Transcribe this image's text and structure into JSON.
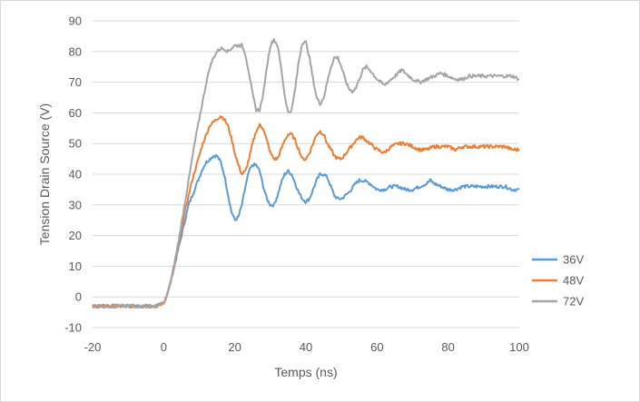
{
  "chart_data": {
    "type": "line",
    "title": "",
    "xlabel": "Temps (ns)",
    "ylabel": "Tension Drain Source (V)",
    "xlim": [
      -20,
      100
    ],
    "ylim": [
      -10,
      90
    ],
    "xticks": [
      -20,
      0,
      20,
      40,
      60,
      80,
      100
    ],
    "yticks": [
      -10,
      0,
      10,
      20,
      30,
      40,
      50,
      60,
      70,
      80,
      90
    ],
    "xtick_labels": [
      "-20",
      "0",
      "20",
      "40",
      "60",
      "80",
      "100"
    ],
    "ytick_labels": [
      "-10",
      "0",
      "10",
      "20",
      "30",
      "40",
      "50",
      "60",
      "70",
      "80",
      "90"
    ],
    "grid": "horizontal",
    "legend_position": "right",
    "series": [
      {
        "name": "36V",
        "color": "#5B9BD5",
        "points": [
          [
            -20,
            -3
          ],
          [
            -10,
            -3
          ],
          [
            -2,
            -3
          ],
          [
            0,
            -2
          ],
          [
            1,
            1
          ],
          [
            2,
            5
          ],
          [
            3,
            10
          ],
          [
            4,
            15
          ],
          [
            5,
            20
          ],
          [
            6,
            25
          ],
          [
            7,
            30
          ],
          [
            8,
            33
          ],
          [
            9,
            36
          ],
          [
            10,
            39
          ],
          [
            11,
            42
          ],
          [
            12,
            44
          ],
          [
            13,
            45
          ],
          [
            14,
            46
          ],
          [
            15,
            46
          ],
          [
            16,
            44
          ],
          [
            17,
            40
          ],
          [
            18,
            34
          ],
          [
            19,
            28
          ],
          [
            20,
            25
          ],
          [
            21,
            26
          ],
          [
            22,
            30
          ],
          [
            23,
            36
          ],
          [
            24,
            41
          ],
          [
            25,
            43
          ],
          [
            26,
            43
          ],
          [
            27,
            41
          ],
          [
            28,
            36
          ],
          [
            29,
            32
          ],
          [
            30,
            30
          ],
          [
            31,
            30
          ],
          [
            32,
            33
          ],
          [
            33,
            37
          ],
          [
            34,
            40
          ],
          [
            35,
            41
          ],
          [
            36,
            40
          ],
          [
            37,
            37
          ],
          [
            38,
            34
          ],
          [
            39,
            32
          ],
          [
            40,
            31
          ],
          [
            41,
            32
          ],
          [
            42,
            35
          ],
          [
            43,
            38
          ],
          [
            44,
            40
          ],
          [
            45,
            40
          ],
          [
            46,
            39
          ],
          [
            47,
            36
          ],
          [
            48,
            33
          ],
          [
            49,
            32
          ],
          [
            50,
            32
          ],
          [
            52,
            34
          ],
          [
            54,
            37
          ],
          [
            55,
            38
          ],
          [
            56,
            38
          ],
          [
            58,
            37
          ],
          [
            60,
            35
          ],
          [
            62,
            35
          ],
          [
            64,
            36
          ],
          [
            66,
            36
          ],
          [
            68,
            35
          ],
          [
            70,
            35
          ],
          [
            72,
            36
          ],
          [
            74,
            37
          ],
          [
            75,
            38
          ],
          [
            76,
            37
          ],
          [
            78,
            36
          ],
          [
            80,
            35
          ],
          [
            82,
            35
          ],
          [
            84,
            36
          ],
          [
            86,
            36
          ],
          [
            88,
            36
          ],
          [
            90,
            36
          ],
          [
            92,
            36
          ],
          [
            94,
            36
          ],
          [
            96,
            36
          ],
          [
            98,
            35
          ],
          [
            100,
            35
          ]
        ]
      },
      {
        "name": "48V",
        "color": "#ED7D31",
        "points": [
          [
            -20,
            -3
          ],
          [
            -10,
            -3
          ],
          [
            -2,
            -3
          ],
          [
            0,
            -2
          ],
          [
            1,
            1
          ],
          [
            2,
            5
          ],
          [
            3,
            10
          ],
          [
            4,
            16
          ],
          [
            5,
            22
          ],
          [
            6,
            28
          ],
          [
            7,
            33
          ],
          [
            8,
            38
          ],
          [
            9,
            42
          ],
          [
            10,
            46
          ],
          [
            11,
            50
          ],
          [
            12,
            53
          ],
          [
            13,
            56
          ],
          [
            14,
            57
          ],
          [
            15,
            58
          ],
          [
            16,
            59
          ],
          [
            17,
            58
          ],
          [
            18,
            56
          ],
          [
            19,
            52
          ],
          [
            20,
            47
          ],
          [
            21,
            43
          ],
          [
            22,
            40
          ],
          [
            23,
            41
          ],
          [
            24,
            45
          ],
          [
            25,
            50
          ],
          [
            26,
            54
          ],
          [
            27,
            56
          ],
          [
            28,
            55
          ],
          [
            29,
            51
          ],
          [
            30,
            47
          ],
          [
            31,
            45
          ],
          [
            32,
            45
          ],
          [
            33,
            48
          ],
          [
            34,
            51
          ],
          [
            35,
            53
          ],
          [
            36,
            53
          ],
          [
            37,
            51
          ],
          [
            38,
            48
          ],
          [
            39,
            45
          ],
          [
            40,
            45
          ],
          [
            41,
            47
          ],
          [
            42,
            50
          ],
          [
            43,
            53
          ],
          [
            44,
            54
          ],
          [
            45,
            53
          ],
          [
            46,
            50
          ],
          [
            47,
            48
          ],
          [
            48,
            46
          ],
          [
            49,
            45
          ],
          [
            50,
            45
          ],
          [
            52,
            48
          ],
          [
            54,
            51
          ],
          [
            55,
            52
          ],
          [
            56,
            52
          ],
          [
            58,
            50
          ],
          [
            60,
            48
          ],
          [
            62,
            47
          ],
          [
            64,
            49
          ],
          [
            66,
            50
          ],
          [
            68,
            50
          ],
          [
            70,
            49
          ],
          [
            72,
            48
          ],
          [
            74,
            48
          ],
          [
            76,
            49
          ],
          [
            78,
            49
          ],
          [
            80,
            49
          ],
          [
            82,
            48
          ],
          [
            84,
            49
          ],
          [
            86,
            49
          ],
          [
            88,
            49
          ],
          [
            90,
            49
          ],
          [
            92,
            49
          ],
          [
            94,
            49
          ],
          [
            96,
            49
          ],
          [
            98,
            48
          ],
          [
            100,
            48
          ]
        ]
      },
      {
        "name": "72V",
        "color": "#A5A5A5",
        "points": [
          [
            -20,
            -3
          ],
          [
            -10,
            -3
          ],
          [
            -2,
            -3
          ],
          [
            0,
            -2
          ],
          [
            1,
            1
          ],
          [
            2,
            5
          ],
          [
            3,
            11
          ],
          [
            4,
            17
          ],
          [
            5,
            24
          ],
          [
            6,
            31
          ],
          [
            7,
            38
          ],
          [
            8,
            45
          ],
          [
            9,
            52
          ],
          [
            10,
            58
          ],
          [
            11,
            64
          ],
          [
            12,
            70
          ],
          [
            13,
            75
          ],
          [
            14,
            78
          ],
          [
            15,
            80
          ],
          [
            16,
            81
          ],
          [
            17,
            81
          ],
          [
            18,
            80
          ],
          [
            19,
            81
          ],
          [
            20,
            82
          ],
          [
            21,
            82
          ],
          [
            22,
            82
          ],
          [
            23,
            79
          ],
          [
            24,
            73
          ],
          [
            25,
            66
          ],
          [
            26,
            61
          ],
          [
            27,
            61
          ],
          [
            28,
            66
          ],
          [
            29,
            75
          ],
          [
            30,
            82
          ],
          [
            31,
            84
          ],
          [
            32,
            82
          ],
          [
            33,
            75
          ],
          [
            34,
            66
          ],
          [
            35,
            60
          ],
          [
            36,
            61
          ],
          [
            37,
            68
          ],
          [
            38,
            77
          ],
          [
            39,
            83
          ],
          [
            40,
            83
          ],
          [
            41,
            78
          ],
          [
            42,
            71
          ],
          [
            43,
            65
          ],
          [
            44,
            63
          ],
          [
            45,
            65
          ],
          [
            46,
            70
          ],
          [
            47,
            75
          ],
          [
            48,
            78
          ],
          [
            49,
            78
          ],
          [
            50,
            75
          ],
          [
            51,
            71
          ],
          [
            52,
            68
          ],
          [
            53,
            67
          ],
          [
            54,
            68
          ],
          [
            55,
            71
          ],
          [
            56,
            74
          ],
          [
            57,
            75
          ],
          [
            58,
            74
          ],
          [
            60,
            71
          ],
          [
            62,
            69
          ],
          [
            64,
            71
          ],
          [
            66,
            73
          ],
          [
            67,
            74
          ],
          [
            68,
            73
          ],
          [
            70,
            71
          ],
          [
            72,
            70
          ],
          [
            74,
            71
          ],
          [
            76,
            72
          ],
          [
            78,
            73
          ],
          [
            80,
            72
          ],
          [
            82,
            71
          ],
          [
            84,
            71
          ],
          [
            86,
            72
          ],
          [
            88,
            72
          ],
          [
            90,
            72
          ],
          [
            92,
            72
          ],
          [
            94,
            72
          ],
          [
            96,
            72
          ],
          [
            98,
            72
          ],
          [
            100,
            71
          ]
        ]
      }
    ]
  }
}
